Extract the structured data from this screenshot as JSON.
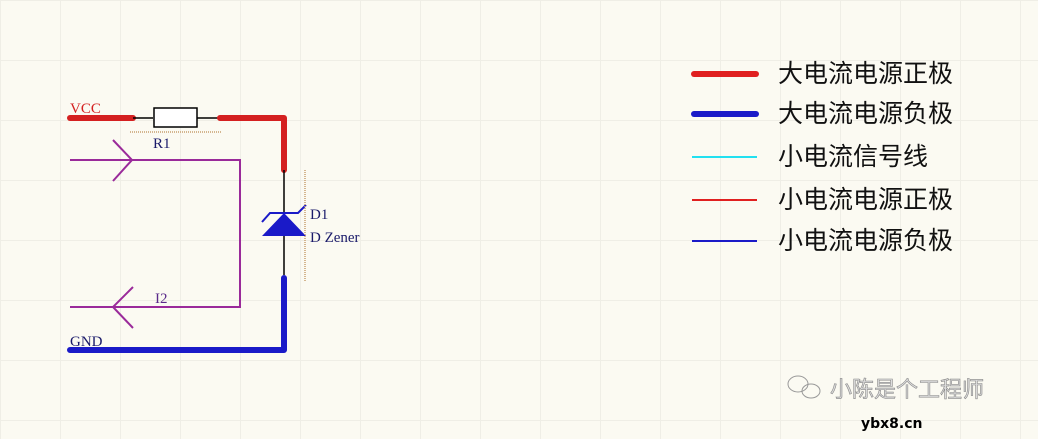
{
  "schematic": {
    "net_vcc": "VCC",
    "net_gnd": "GND",
    "resistor_ref": "R1",
    "port_ref": "I2",
    "diode_ref": "D1",
    "diode_value": "D Zener"
  },
  "legend": [
    {
      "label": "大电流电源正极",
      "color": "#e02020",
      "weight": "thick"
    },
    {
      "label": "大电流电源负极",
      "color": "#1a1ac8",
      "weight": "thick"
    },
    {
      "label": "小电流信号线",
      "color": "#22e0f0",
      "weight": "thin"
    },
    {
      "label": "小电流电源正极",
      "color": "#e02020",
      "weight": "thin"
    },
    {
      "label": "小电流电源负极",
      "color": "#1a1ac8",
      "weight": "thin"
    }
  ],
  "watermark": {
    "text": "小陈是个工程师",
    "site": "ybx8.cn",
    "icon": "wechat-icon"
  }
}
